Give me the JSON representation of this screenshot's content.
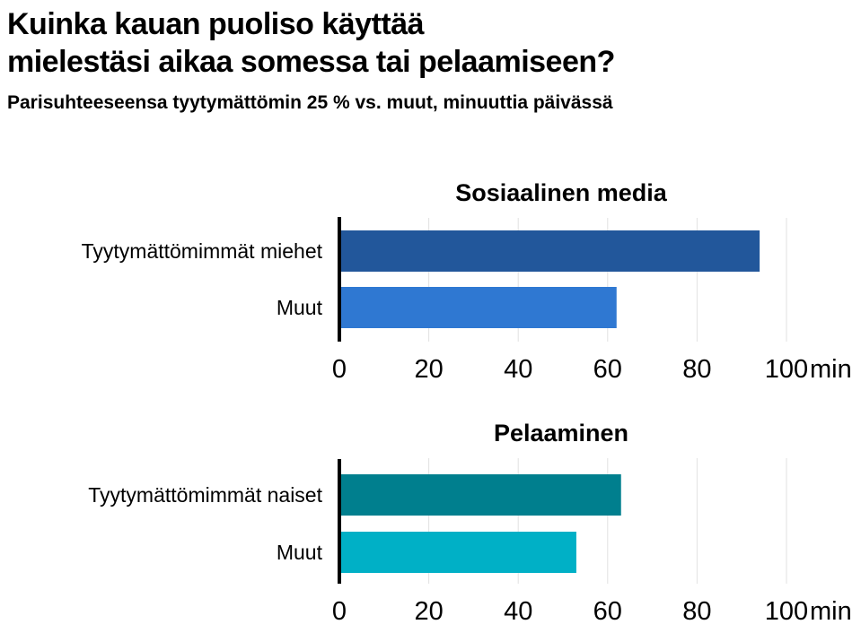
{
  "title_lines": [
    "Kuinka kauan puoliso käyttää",
    "mielestäsi aikaa somessa tai pelaamiseen?"
  ],
  "subtitle": "Parisuhteeseensa tyytymättömin 25 % vs. muut, minuuttia päivässä",
  "chart_data": [
    {
      "type": "bar",
      "orientation": "horizontal",
      "title": "Sosiaalinen media",
      "categories": [
        "Tyytymättömimmät miehet",
        "Muut"
      ],
      "values": [
        94,
        62
      ],
      "colors": [
        "#22579b",
        "#2f78d2"
      ],
      "xlim": [
        0,
        100
      ],
      "ticks": [
        "0",
        "20",
        "40",
        "60",
        "80",
        "100"
      ],
      "unit": "min",
      "grid": true
    },
    {
      "type": "bar",
      "orientation": "horizontal",
      "title": "Pelaaminen",
      "categories": [
        "Tyytymättömimmät naiset",
        "Muut"
      ],
      "values": [
        63,
        53
      ],
      "colors": [
        "#007f8e",
        "#00b0c6"
      ],
      "xlim": [
        0,
        100
      ],
      "ticks": [
        "0",
        "20",
        "40",
        "60",
        "80",
        "100"
      ],
      "unit": "min",
      "grid": true
    }
  ]
}
